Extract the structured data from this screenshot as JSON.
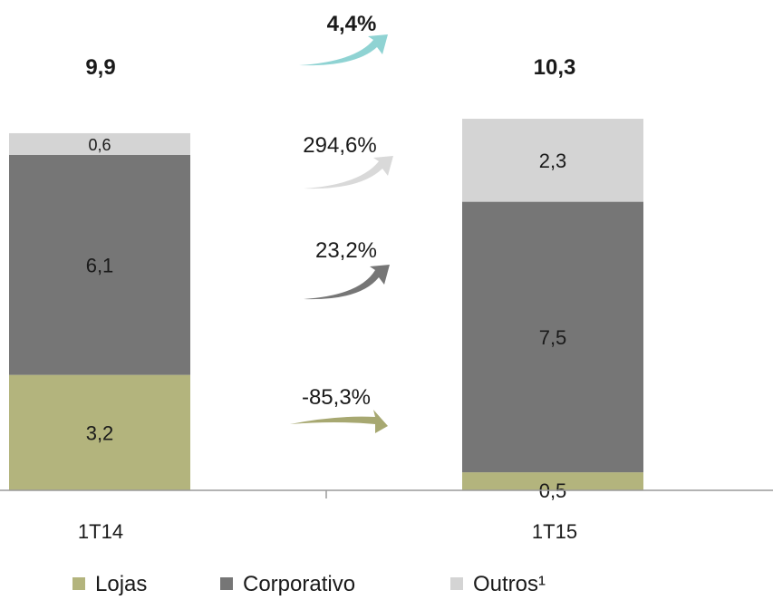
{
  "chart_data": {
    "type": "bar",
    "stacked": true,
    "categories": [
      "1T14",
      "1T15"
    ],
    "series": [
      {
        "name": "Lojas",
        "color": "#b3b47d",
        "values": [
          3.2,
          0.5
        ],
        "labels": [
          "3,2",
          "0,5"
        ]
      },
      {
        "name": "Corporativo",
        "color": "#767676",
        "values": [
          6.1,
          7.5
        ],
        "labels": [
          "6,1",
          "7,5"
        ]
      },
      {
        "name": "Outros¹",
        "color": "#d4d4d4",
        "values": [
          0.6,
          2.3
        ],
        "labels": [
          "0,6",
          "2,3"
        ]
      }
    ],
    "totals": [
      "9,9",
      "10,3"
    ],
    "growth": [
      {
        "series": "Total",
        "label": "4,4%",
        "color": "#8fd3d3"
      },
      {
        "series": "Outros¹",
        "label": "294,6%",
        "color": "#d9d9d9"
      },
      {
        "series": "Corporativo",
        "label": "23,2%",
        "color": "#767676"
      },
      {
        "series": "Lojas",
        "label": "-85,3%",
        "color": "#a7a871"
      }
    ],
    "legend_position": "bottom",
    "grid": false
  }
}
